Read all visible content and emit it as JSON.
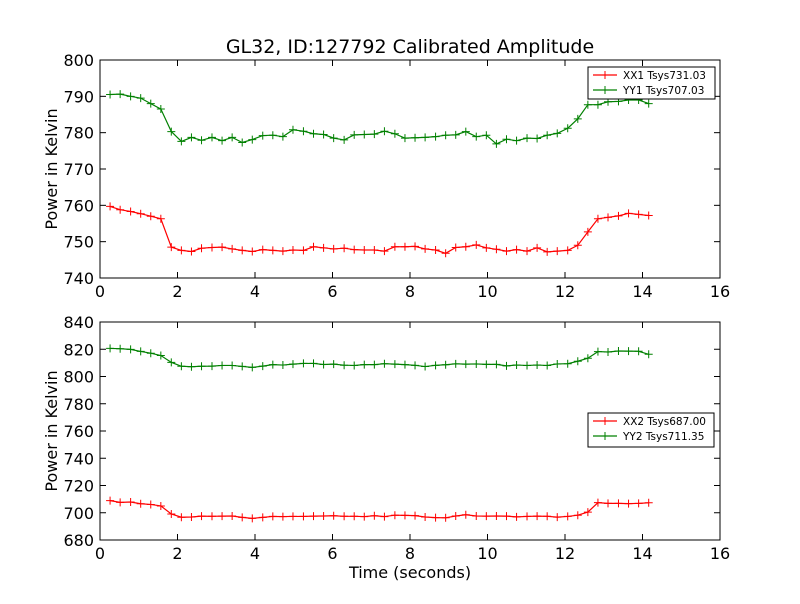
{
  "figure": {
    "title": "GL32, ID:127792 Calibrated Amplitude",
    "xlabel": "Time (seconds)"
  },
  "chart_data": [
    {
      "type": "line",
      "title": "GL32, ID:127792 Calibrated Amplitude",
      "xlabel": "",
      "ylabel": "Power in Kelvin",
      "xlim": [
        0,
        16
      ],
      "ylim": [
        740,
        800
      ],
      "xticks": [
        0,
        2,
        4,
        6,
        8,
        10,
        12,
        14,
        16
      ],
      "yticks": [
        740,
        750,
        760,
        770,
        780,
        790,
        800
      ],
      "grid": false,
      "legend": "top-right",
      "x": [
        0.26,
        0.52,
        0.79,
        1.05,
        1.31,
        1.57,
        1.84,
        2.1,
        2.36,
        2.62,
        2.89,
        3.15,
        3.41,
        3.67,
        3.93,
        4.2,
        4.46,
        4.72,
        4.98,
        5.25,
        5.51,
        5.77,
        6.03,
        6.3,
        6.56,
        6.82,
        7.08,
        7.34,
        7.61,
        7.87,
        8.13,
        8.39,
        8.66,
        8.92,
        9.18,
        9.44,
        9.71,
        9.97,
        10.23,
        10.49,
        10.75,
        11.02,
        11.28,
        11.54,
        11.8,
        12.07,
        12.33,
        12.59,
        12.85,
        13.11,
        13.38,
        13.64,
        13.9,
        14.16
      ],
      "series": [
        {
          "name": "XX1 Tsys731.03",
          "color": "#ff0000",
          "values": [
            759.7,
            758.8,
            758.3,
            757.7,
            757.0,
            756.3,
            748.5,
            747.6,
            747.3,
            748.2,
            748.4,
            748.5,
            748.0,
            747.6,
            747.3,
            747.8,
            747.6,
            747.4,
            747.7,
            747.6,
            748.6,
            748.3,
            748.0,
            748.2,
            747.8,
            747.7,
            747.7,
            747.4,
            748.6,
            748.6,
            748.7,
            748.0,
            747.7,
            746.8,
            748.4,
            748.6,
            749.1,
            748.3,
            747.9,
            747.4,
            747.8,
            747.4,
            748.3,
            747.2,
            747.4,
            747.6,
            749.0,
            752.7,
            756.3,
            756.7,
            757.1,
            757.8,
            757.5,
            757.2
          ]
        },
        {
          "name": "YY1 Tsys707.03",
          "color": "#008000",
          "values": [
            790.5,
            790.6,
            790.0,
            789.5,
            788.0,
            786.5,
            780.3,
            777.6,
            778.7,
            777.9,
            778.7,
            777.8,
            778.7,
            777.3,
            778.1,
            779.2,
            779.3,
            778.9,
            780.8,
            780.4,
            779.7,
            779.5,
            778.5,
            778.0,
            779.4,
            779.5,
            779.6,
            780.4,
            779.7,
            778.5,
            778.6,
            778.7,
            778.9,
            779.3,
            779.4,
            780.3,
            778.9,
            779.3,
            776.9,
            778.2,
            777.8,
            778.5,
            778.4,
            779.3,
            779.8,
            781.2,
            783.8,
            787.7,
            787.7,
            788.5,
            788.6,
            789.0,
            789.0,
            788.0
          ]
        }
      ]
    },
    {
      "type": "line",
      "title": "",
      "xlabel": "Time (seconds)",
      "ylabel": "Power in Kelvin",
      "xlim": [
        0,
        16
      ],
      "ylim": [
        680,
        840
      ],
      "xticks": [
        0,
        2,
        4,
        6,
        8,
        10,
        12,
        14,
        16
      ],
      "yticks": [
        680,
        700,
        720,
        740,
        760,
        780,
        800,
        820,
        840
      ],
      "grid": false,
      "legend": "center-right",
      "x": [
        0.26,
        0.52,
        0.79,
        1.05,
        1.31,
        1.57,
        1.84,
        2.1,
        2.36,
        2.62,
        2.89,
        3.15,
        3.41,
        3.67,
        3.93,
        4.2,
        4.46,
        4.72,
        4.98,
        5.25,
        5.51,
        5.77,
        6.03,
        6.3,
        6.56,
        6.82,
        7.08,
        7.34,
        7.61,
        7.87,
        8.13,
        8.39,
        8.66,
        8.92,
        9.18,
        9.44,
        9.71,
        9.97,
        10.23,
        10.49,
        10.75,
        11.02,
        11.28,
        11.54,
        11.8,
        12.07,
        12.33,
        12.59,
        12.85,
        13.11,
        13.38,
        13.64,
        13.9,
        14.16
      ],
      "series": [
        {
          "name": "XX2 Tsys687.00",
          "color": "#ff0000",
          "values": [
            708.9,
            707.6,
            707.9,
            706.6,
            706.1,
            705.0,
            699.1,
            696.7,
            696.9,
            697.5,
            697.4,
            697.5,
            697.6,
            696.6,
            695.9,
            696.6,
            697.3,
            697.2,
            697.3,
            697.3,
            697.5,
            697.6,
            697.8,
            697.4,
            697.4,
            697.2,
            697.8,
            697.2,
            698.2,
            698.1,
            697.9,
            696.9,
            696.4,
            696.3,
            697.6,
            698.5,
            697.6,
            697.5,
            697.6,
            697.5,
            697.0,
            697.3,
            697.5,
            697.4,
            696.8,
            697.3,
            698.2,
            700.5,
            707.4,
            706.9,
            706.9,
            706.7,
            706.9,
            707.3
          ]
        },
        {
          "name": "YY2 Tsys711.35",
          "color": "#008000",
          "values": [
            820.6,
            820.4,
            819.9,
            818.4,
            817.1,
            815.4,
            810.4,
            807.5,
            807.2,
            807.5,
            807.6,
            808.1,
            808.1,
            807.4,
            806.7,
            807.6,
            808.7,
            808.4,
            809.1,
            809.6,
            809.6,
            808.8,
            809.1,
            808.3,
            808.1,
            808.7,
            808.7,
            809.4,
            809.1,
            808.7,
            808.2,
            807.3,
            808.2,
            808.6,
            809.3,
            809.1,
            809.2,
            808.9,
            808.9,
            807.8,
            808.4,
            808.1,
            808.4,
            808.1,
            809.2,
            809.4,
            811.2,
            813.4,
            818.3,
            818.0,
            818.7,
            818.6,
            818.5,
            816.3
          ]
        }
      ]
    }
  ]
}
